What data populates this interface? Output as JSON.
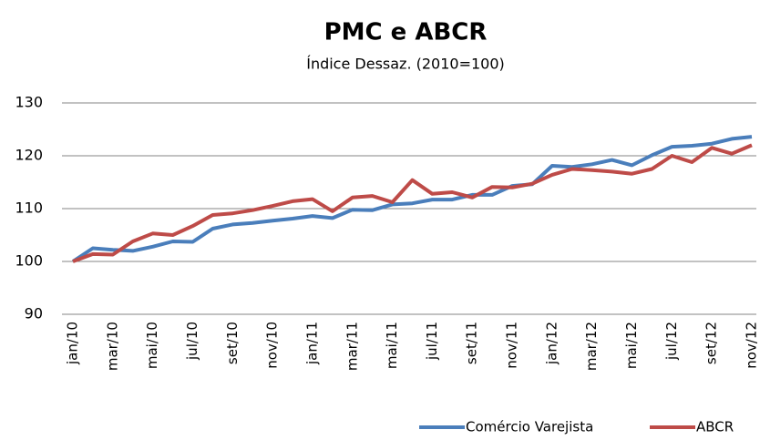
{
  "chart_data": {
    "type": "line",
    "title": "PMC e ABCR",
    "subtitle": "Índice Dessaz. (2010=100)",
    "categories": [
      "jan/10",
      null,
      "mar/10",
      null,
      "mai/10",
      null,
      "jul/10",
      null,
      "set/10",
      null,
      "nov/10",
      null,
      "jan/11",
      null,
      "mar/11",
      null,
      "mai/11",
      null,
      "jul/11",
      null,
      "set/11",
      null,
      "nov/11",
      null,
      "jan/12",
      null,
      "mar/12",
      null,
      "mai/12",
      null,
      "jul/12",
      null,
      "set/12",
      null,
      "nov/12"
    ],
    "series": [
      {
        "name": "Comércio Varejista",
        "color": "#4a7ebb",
        "values": [
          100,
          102.5,
          102.2,
          102,
          102.8,
          103.8,
          103.7,
          106.2,
          107,
          107.3,
          107.7,
          108.1,
          108.6,
          108.2,
          109.8,
          109.7,
          110.8,
          111,
          111.7,
          111.7,
          112.6,
          112.6,
          114.3,
          114.6,
          118.1,
          117.9,
          118.4,
          119.2,
          118.2,
          120.1,
          121.7,
          121.9,
          122.3,
          123.2,
          123.6
        ]
      },
      {
        "name": "ABCR",
        "color": "#be4b48",
        "values": [
          100,
          101.4,
          101.3,
          103.8,
          105.3,
          105,
          106.7,
          108.8,
          109.1,
          109.7,
          110.5,
          111.4,
          111.8,
          109.5,
          112.1,
          112.4,
          111.2,
          115.4,
          112.8,
          113.1,
          112.1,
          114.1,
          114,
          114.7,
          116.4,
          117.5,
          117.3,
          117,
          116.6,
          117.5,
          120,
          118.8,
          121.5,
          120.4,
          122
        ]
      }
    ],
    "ylim": [
      90,
      130
    ],
    "yticks": [
      90,
      100,
      110,
      120,
      130
    ],
    "grid": true,
    "legend": "bottom-right"
  }
}
